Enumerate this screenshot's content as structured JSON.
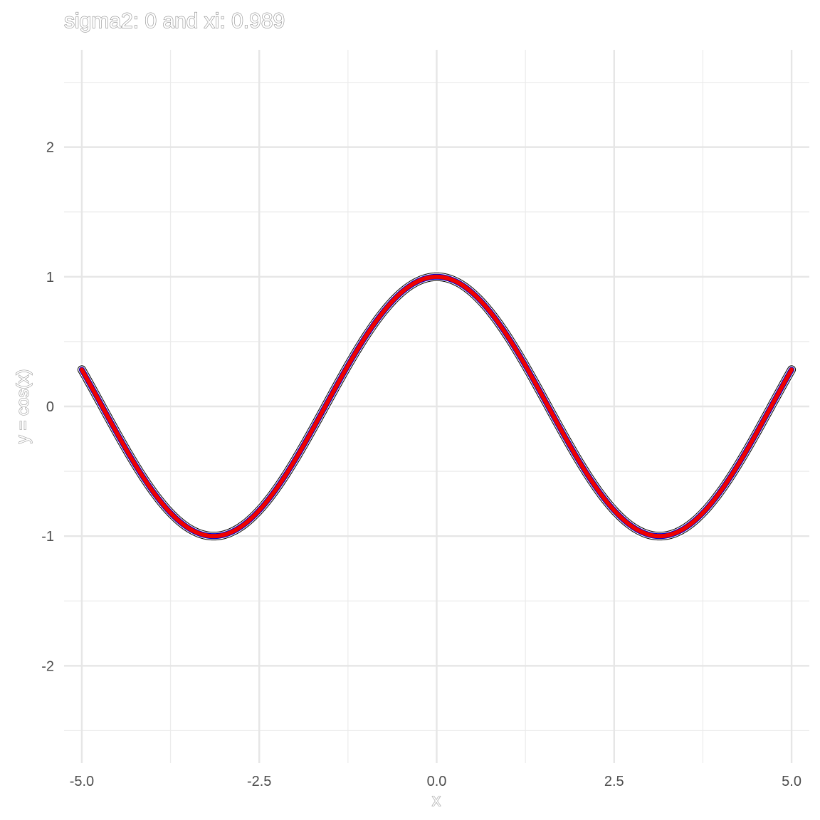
{
  "chart_data": {
    "type": "line",
    "title": "sigma2: 0 and xi: 0.989",
    "xlabel": "x",
    "ylabel": "y = cos(x)",
    "xlim": [
      -5.25,
      5.25
    ],
    "ylim": [
      -2.75,
      2.75
    ],
    "x_ticks": [
      -5.0,
      -2.5,
      0.0,
      2.5,
      5.0
    ],
    "x_tick_labels": [
      "-5.0",
      "-2.5",
      "0.0",
      "2.5",
      "5.0"
    ],
    "y_ticks": [
      -2,
      -1,
      0,
      1,
      2
    ],
    "y_tick_labels": [
      "-2",
      "-1",
      "0",
      "1",
      "2"
    ],
    "x_minor_ticks": [
      -3.75,
      -1.25,
      1.25,
      3.75
    ],
    "y_minor_ticks": [
      -2.5,
      -1.5,
      -0.5,
      0.5,
      1.5,
      2.5
    ],
    "grid": true,
    "series": [
      {
        "function": "cos",
        "x_range": [
          -5,
          5
        ],
        "style": "thick red line with black and white outline",
        "colors": {
          "halo": "#ffffff",
          "outline": "#000000",
          "band": "#0000cc",
          "line": "#ee0000"
        }
      }
    ]
  }
}
